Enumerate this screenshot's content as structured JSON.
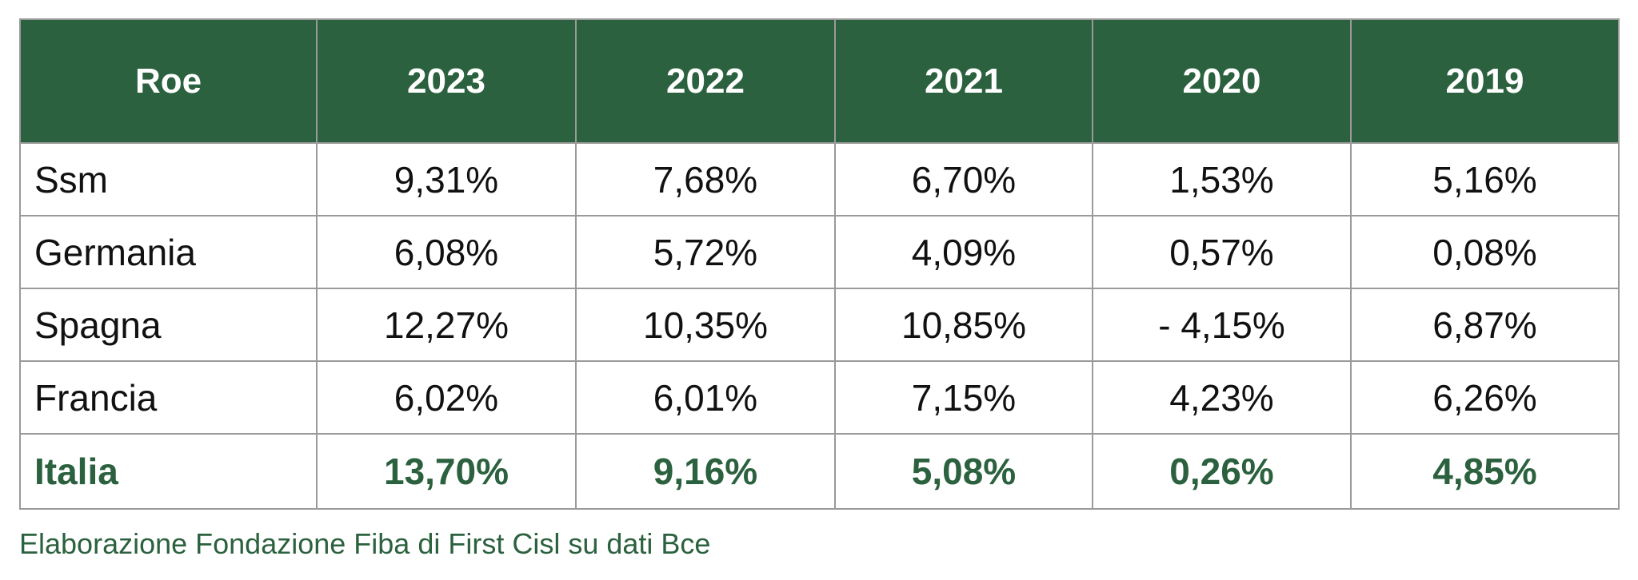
{
  "chart_data": {
    "type": "table",
    "columns": [
      "Roe",
      "2023",
      "2022",
      "2021",
      "2020",
      "2019"
    ],
    "rows": [
      {
        "label": "Ssm",
        "values": [
          "9,31%",
          "7,68%",
          "6,70%",
          "1,53%",
          "5,16%"
        ],
        "highlight": false
      },
      {
        "label": "Germania",
        "values": [
          "6,08%",
          "5,72%",
          "4,09%",
          "0,57%",
          "0,08%"
        ],
        "highlight": false
      },
      {
        "label": "Spagna",
        "values": [
          "12,27%",
          "10,35%",
          "10,85%",
          "- 4,15%",
          "6,87%"
        ],
        "highlight": false
      },
      {
        "label": "Francia",
        "values": [
          "6,02%",
          "6,01%",
          "7,15%",
          "4,23%",
          "6,26%"
        ],
        "highlight": false
      },
      {
        "label": "Italia",
        "values": [
          "13,70%",
          "9,16%",
          "5,08%",
          "0,26%",
          "4,85%"
        ],
        "highlight": true
      }
    ],
    "source": "Elaborazione Fondazione Fiba di First Cisl su dati Bce",
    "colors": {
      "header_bg": "#2b613e",
      "header_text": "#ffffff",
      "highlight_text": "#2b613e",
      "border": "#9a9a9a"
    }
  }
}
